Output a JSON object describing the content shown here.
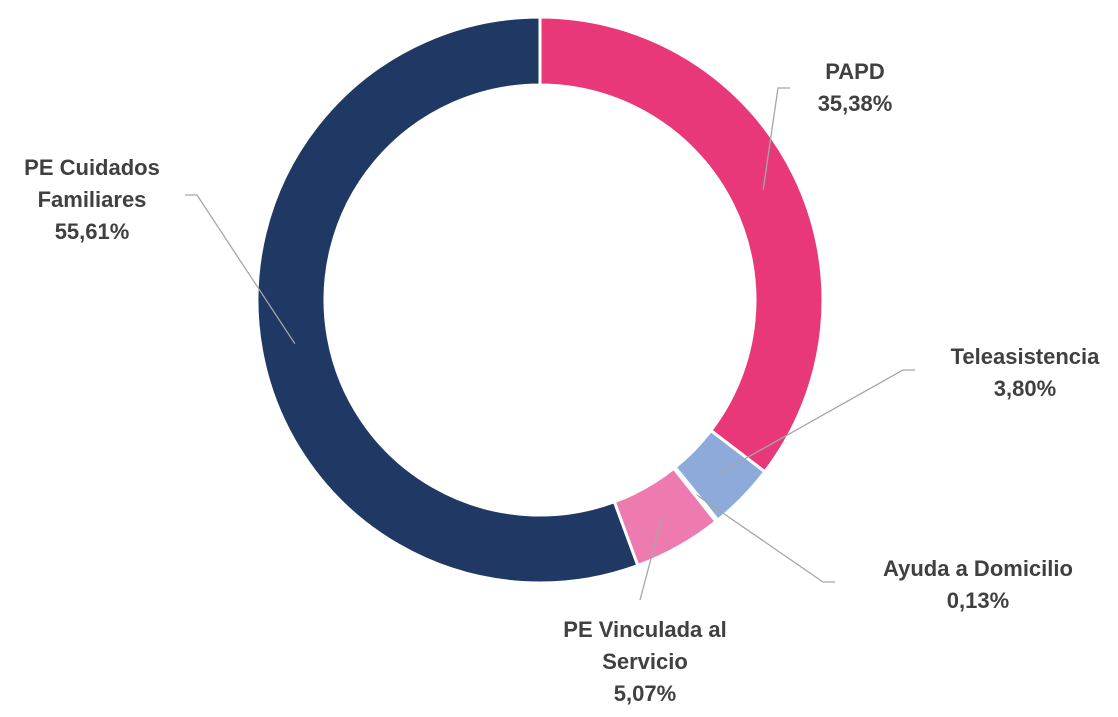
{
  "chart_data": {
    "type": "donut",
    "categories": [
      "PAPD",
      "Teleasistencia",
      "Ayuda a Domicilio",
      "PE Vinculada al Servicio",
      "PE Cuidados Familiares"
    ],
    "values": [
      35.38,
      3.8,
      0.13,
      5.07,
      55.61
    ],
    "value_labels": [
      "35,38%",
      "3,80%",
      "0,13%",
      "5,07%",
      "55,61%"
    ],
    "colors": [
      "#e8387a",
      "#8eaadb",
      "#4472c4",
      "#ee7bb0",
      "#203864"
    ]
  }
}
